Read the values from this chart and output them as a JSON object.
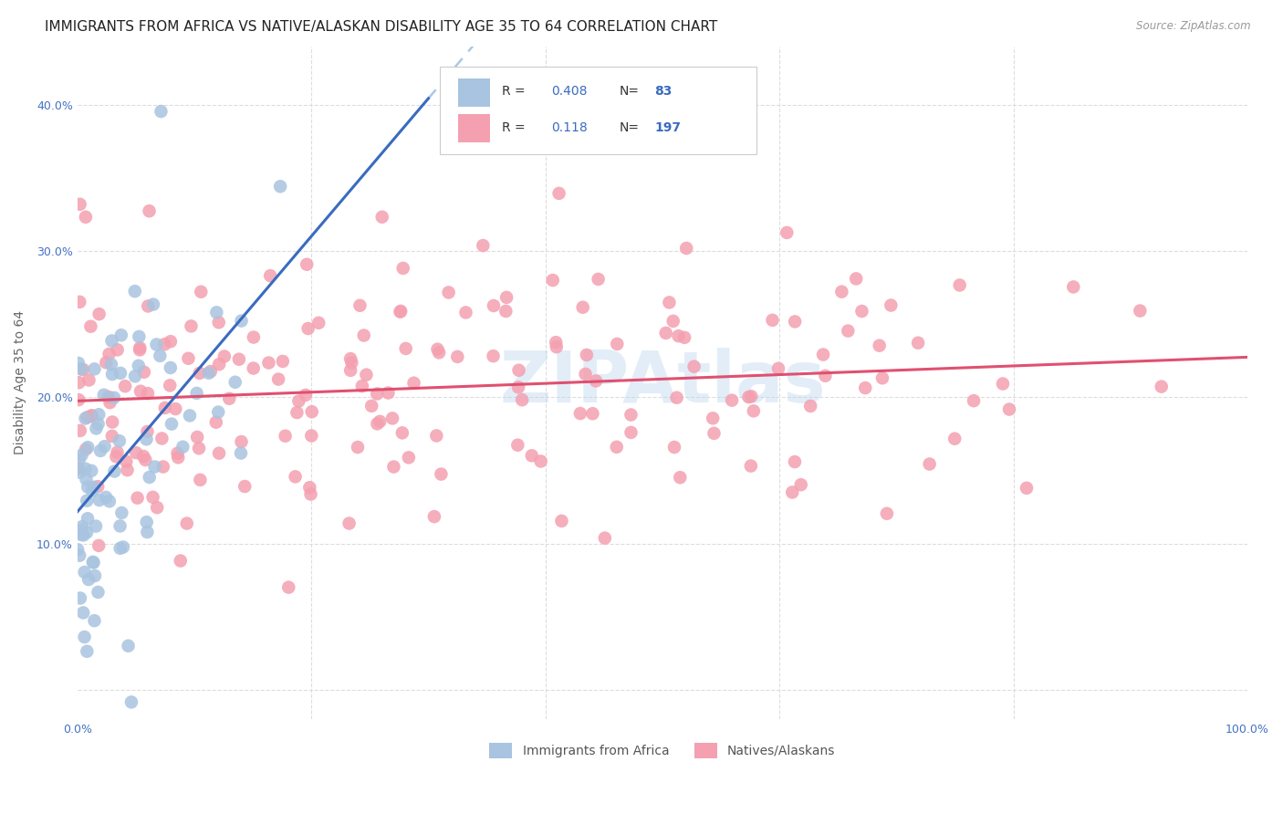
{
  "title": "IMMIGRANTS FROM AFRICA VS NATIVE/ALASKAN DISABILITY AGE 35 TO 64 CORRELATION CHART",
  "source": "Source: ZipAtlas.com",
  "ylabel": "Disability Age 35 to 64",
  "xlim": [
    0.0,
    1.0
  ],
  "ylim": [
    -0.02,
    0.44
  ],
  "xticks": [
    0.0,
    0.2,
    0.4,
    0.6,
    0.8,
    1.0
  ],
  "xticklabels": [
    "0.0%",
    "",
    "",
    "",
    "",
    "100.0%"
  ],
  "yticks": [
    0.0,
    0.1,
    0.2,
    0.3,
    0.4
  ],
  "yticklabels": [
    "",
    "10.0%",
    "20.0%",
    "30.0%",
    "40.0%"
  ],
  "R_africa": 0.408,
  "N_africa": 83,
  "R_native": 0.118,
  "N_native": 197,
  "color_africa": "#a8c4e0",
  "color_native": "#f4a0b0",
  "trendline_africa_solid": "#3a6bbf",
  "trendline_africa_dashed": "#a8c8e8",
  "trendline_native": "#e05070",
  "background_color": "#ffffff",
  "grid_color": "#dddddd",
  "title_fontsize": 11,
  "axis_label_fontsize": 10,
  "tick_fontsize": 9,
  "watermark": "ZIPAtlas",
  "legend_R_color": "#3a6bbf",
  "legend_N_color": "#3a6bbf",
  "seed": 42
}
